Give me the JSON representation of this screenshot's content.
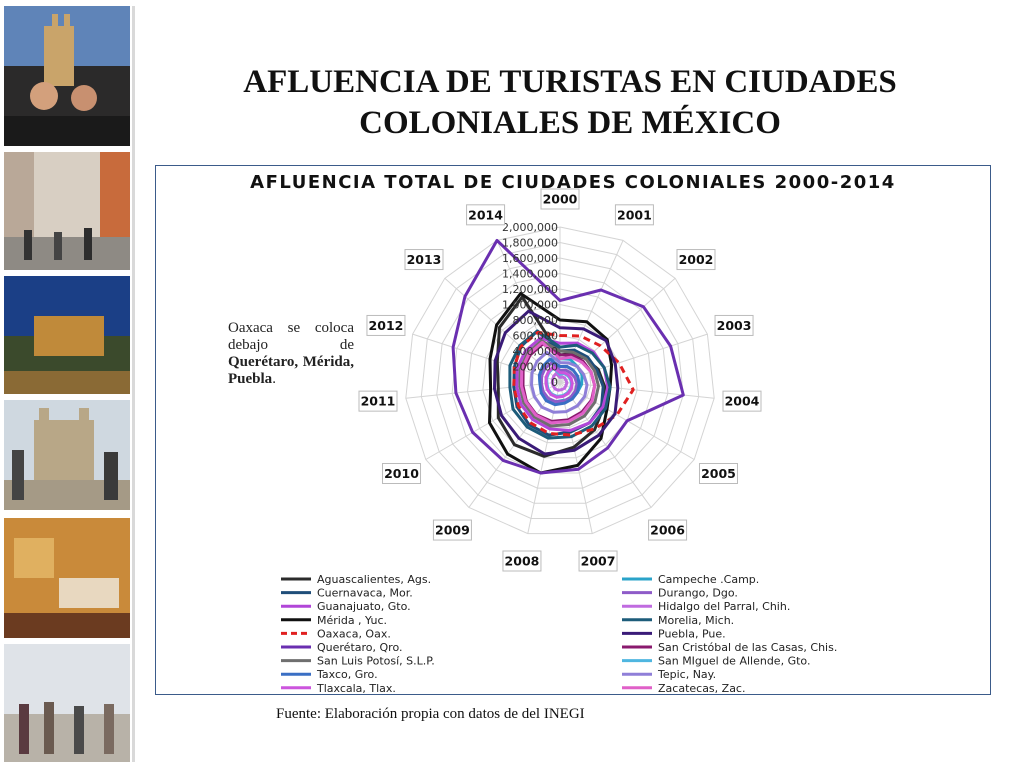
{
  "slide": {
    "title_line1": "AFLUENCIA DE TURISTAS EN CIUDADES",
    "title_line2": "COLONIALES DE MÉXICO",
    "note_text": "Oaxaca se coloca debajo de",
    "note_bold": "Querétaro, Mérida, Puebla",
    "note_end": ".",
    "source": "Fuente: Elaboración propia con datos de del INEGI"
  },
  "chart_data": {
    "type": "radar",
    "title": "AFLUENCIA TOTAL DE CIUDADES COLONIALES 2000-2014",
    "categories": [
      "2000",
      "2001",
      "2002",
      "2003",
      "2004",
      "2005",
      "2006",
      "2007",
      "2008",
      "2009",
      "2010",
      "2011",
      "2012",
      "2013",
      "2014"
    ],
    "ylim": [
      0,
      2000000
    ],
    "ticks": [
      "0",
      "200,000",
      "400,000",
      "600,000",
      "800,000",
      "1,000,000",
      "1,200,000",
      "1,400,000",
      "1,600,000",
      "1,800,000",
      "2,000,000"
    ],
    "grid": true,
    "legend_position": "bottom",
    "series": [
      {
        "name": "Aguascalientes, Ags.",
        "color": "#2b2b2b",
        "dash": false,
        "values": [
          350000,
          400000,
          450000,
          520000,
          580000,
          650000,
          760000,
          860000,
          980000,
          1000000,
          920000,
          800000,
          850000,
          1050000,
          1200000
        ]
      },
      {
        "name": "Campeche .Camp.",
        "color": "#2aa3c9",
        "dash": false,
        "values": [
          300000,
          320000,
          300000,
          300000,
          280000,
          260000,
          270000,
          240000,
          260000,
          280000,
          260000,
          260000,
          280000,
          300000,
          320000
        ]
      },
      {
        "name": "Cuernavaca, Mor.",
        "color": "#1f4e79",
        "dash": false,
        "values": [
          400000,
          450000,
          480000,
          500000,
          560000,
          620000,
          650000,
          660000,
          700000,
          680000,
          640000,
          600000,
          620000,
          680000,
          720000
        ]
      },
      {
        "name": "Durango, Dgo.",
        "color": "#8e5bc8",
        "dash": false,
        "values": [
          150000,
          170000,
          180000,
          200000,
          220000,
          230000,
          240000,
          250000,
          260000,
          260000,
          250000,
          240000,
          250000,
          260000,
          270000
        ]
      },
      {
        "name": "Guanajuato, Gto.",
        "color": "#b146d8",
        "dash": false,
        "values": [
          500000,
          550000,
          580000,
          600000,
          620000,
          640000,
          650000,
          640000,
          620000,
          600000,
          580000,
          560000,
          580000,
          600000,
          620000
        ]
      },
      {
        "name": "Hidalgo del Parral, Chih.",
        "color": "#c06be0",
        "dash": false,
        "values": [
          60000,
          70000,
          80000,
          80000,
          90000,
          90000,
          100000,
          100000,
          110000,
          110000,
          100000,
          100000,
          100000,
          110000,
          120000
        ]
      },
      {
        "name": "Mérida , Yuc.",
        "color": "#111111",
        "dash": false,
        "values": [
          800000,
          850000,
          820000,
          700000,
          650000,
          700000,
          900000,
          1100000,
          1200000,
          1150000,
          1050000,
          900000,
          950000,
          1100000,
          1250000
        ]
      },
      {
        "name": "Morelia, Mich.",
        "color": "#1d5c7a",
        "dash": false,
        "values": [
          450000,
          520000,
          560000,
          600000,
          650000,
          680000,
          700000,
          720000,
          740000,
          720000,
          700000,
          650000,
          680000,
          700000,
          720000
        ]
      },
      {
        "name": "Oaxaca, Oax.",
        "color": "#e02020",
        "dash": true,
        "values": [
          600000,
          650000,
          700000,
          800000,
          950000,
          850000,
          750000,
          700000,
          680000,
          650000,
          620000,
          600000,
          620000,
          680000,
          700000
        ]
      },
      {
        "name": "Puebla, Pue.",
        "color": "#3a1b78",
        "dash": false,
        "values": [
          700000,
          750000,
          800000,
          750000,
          750000,
          820000,
          850000,
          900000,
          950000,
          900000,
          870000,
          850000,
          880000,
          950000,
          1000000
        ]
      },
      {
        "name": "Querétaro, Qro.",
        "color": "#6a2fb0",
        "dash": false,
        "values": [
          1050000,
          1300000,
          1450000,
          1500000,
          1600000,
          1000000,
          1050000,
          1150000,
          1200000,
          1250000,
          1300000,
          1350000,
          1450000,
          1650000,
          2000000
        ]
      },
      {
        "name": "San Cristóbal de las Casas, Chis.",
        "color": "#8a1a6e",
        "dash": false,
        "values": [
          350000,
          380000,
          400000,
          420000,
          450000,
          470000,
          480000,
          500000,
          520000,
          520000,
          500000,
          480000,
          500000,
          520000,
          540000
        ]
      },
      {
        "name": "San Luis Potosí, S.L.P.",
        "color": "#6f6f6f",
        "dash": false,
        "values": [
          400000,
          420000,
          450000,
          470000,
          500000,
          520000,
          540000,
          560000,
          580000,
          560000,
          540000,
          520000,
          540000,
          560000,
          580000
        ]
      },
      {
        "name": "San MIguel de Allende, Gto.",
        "color": "#4fb6e0",
        "dash": false,
        "values": [
          100000,
          120000,
          130000,
          140000,
          150000,
          160000,
          170000,
          180000,
          190000,
          190000,
          180000,
          170000,
          180000,
          190000,
          200000
        ]
      },
      {
        "name": "Taxco, Gro.",
        "color": "#3a6fc4",
        "dash": false,
        "values": [
          200000,
          220000,
          230000,
          240000,
          250000,
          260000,
          270000,
          280000,
          300000,
          300000,
          280000,
          260000,
          280000,
          300000,
          320000
        ]
      },
      {
        "name": "Tepic, Nay.",
        "color": "#8f7fd8",
        "dash": false,
        "values": [
          250000,
          270000,
          300000,
          320000,
          350000,
          370000,
          380000,
          390000,
          400000,
          400000,
          380000,
          370000,
          380000,
          400000,
          420000
        ]
      },
      {
        "name": "Tlaxcala, Tlax.",
        "color": "#cc55dd",
        "dash": false,
        "values": [
          120000,
          130000,
          140000,
          150000,
          160000,
          170000,
          180000,
          190000,
          200000,
          200000,
          190000,
          180000,
          190000,
          200000,
          210000
        ]
      },
      {
        "name": "Zacatecas, Zac.",
        "color": "#e060c8",
        "dash": false,
        "values": [
          300000,
          350000,
          380000,
          420000,
          450000,
          480000,
          500000,
          520000,
          540000,
          530000,
          510000,
          500000,
          520000,
          540000,
          560000
        ]
      }
    ]
  }
}
